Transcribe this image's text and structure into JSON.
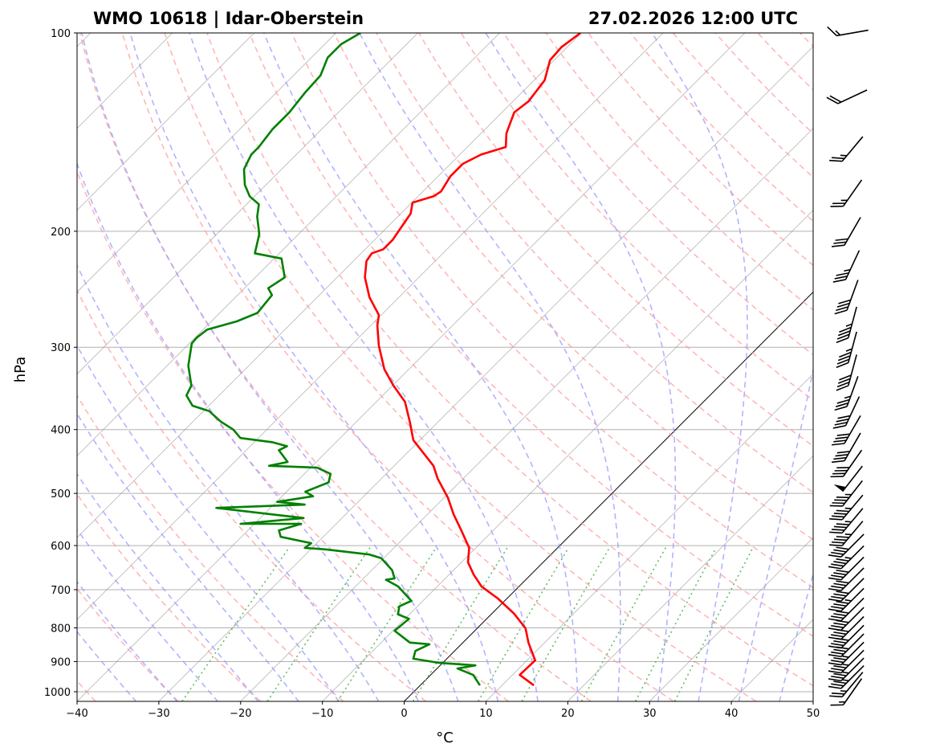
{
  "chart_data": {
    "type": "line",
    "subtype": "skew-t log-p",
    "title_left": "WMO 10618 | Idar-Oberstein",
    "title_right": "27.02.2026 12:00 UTC",
    "xlabel": "°C",
    "ylabel": "hPa",
    "xlim": [
      -40,
      50
    ],
    "ylim": [
      1034,
      100
    ],
    "x_ticks": [
      "−40",
      "−30",
      "−20",
      "−10",
      "0",
      "10",
      "20",
      "30",
      "40",
      "50"
    ],
    "x_tick_values": [
      -40,
      -30,
      -20,
      -10,
      0,
      10,
      20,
      30,
      40,
      50
    ],
    "y_ticks": [
      "100",
      "200",
      "300",
      "400",
      "500",
      "600",
      "700",
      "800",
      "900",
      "1000"
    ],
    "y_tick_values": [
      100,
      200,
      300,
      400,
      500,
      600,
      700,
      800,
      900,
      1000
    ],
    "grid": true,
    "colors": {
      "temperature": "#ff0000",
      "dewpoint": "#008000",
      "dry_adiabat": "#ff9999",
      "moist_adiabat": "#9999ff",
      "mixing_ratio": "#66bb66",
      "isotherm": "#888888",
      "zero_isotherm": "#000000"
    },
    "series": [
      {
        "name": "temperature",
        "points": [
          [
            978,
            13.9
          ],
          [
            943,
            10.9
          ],
          [
            896,
            11.0
          ],
          [
            842,
            8.0
          ],
          [
            801,
            5.9
          ],
          [
            761,
            2.7
          ],
          [
            722,
            -1.1
          ],
          [
            692,
            -4.6
          ],
          [
            664,
            -7.0
          ],
          [
            636,
            -9.2
          ],
          [
            605,
            -10.8
          ],
          [
            569,
            -13.9
          ],
          [
            538,
            -16.8
          ],
          [
            508,
            -19.5
          ],
          [
            475,
            -23.1
          ],
          [
            454,
            -25.2
          ],
          [
            415,
            -30.8
          ],
          [
            389,
            -33.5
          ],
          [
            363,
            -36.5
          ],
          [
            343,
            -39.9
          ],
          [
            324,
            -43.0
          ],
          [
            298,
            -46.6
          ],
          [
            278,
            -49.2
          ],
          [
            268,
            -50.3
          ],
          [
            252,
            -53.6
          ],
          [
            235,
            -56.6
          ],
          [
            222,
            -58.4
          ],
          [
            216,
            -58.7
          ],
          [
            213,
            -57.8
          ],
          [
            206,
            -57.8
          ],
          [
            197,
            -58.3
          ],
          [
            188,
            -58.8
          ],
          [
            181,
            -59.9
          ],
          [
            177,
            -58.1
          ],
          [
            174,
            -57.8
          ],
          [
            165,
            -58.5
          ],
          [
            158,
            -58.5
          ],
          [
            153,
            -57.4
          ],
          [
            149,
            -55.3
          ],
          [
            142,
            -56.9
          ],
          [
            132,
            -58.5
          ],
          [
            127,
            -58.1
          ],
          [
            118,
            -58.7
          ],
          [
            110,
            -60.5
          ],
          [
            105,
            -60.7
          ],
          [
            100,
            -60.1
          ]
        ]
      },
      {
        "name": "dewpoint",
        "points": [
          [
            978,
            7.3
          ],
          [
            943,
            5.2
          ],
          [
            922,
            2.5
          ],
          [
            912,
            4.3
          ],
          [
            904,
            -0.4
          ],
          [
            891,
            -4.1
          ],
          [
            867,
            -4.8
          ],
          [
            847,
            -3.9
          ],
          [
            842,
            -6.5
          ],
          [
            808,
            -9.8
          ],
          [
            775,
            -9.5
          ],
          [
            763,
            -11.4
          ],
          [
            742,
            -12.2
          ],
          [
            728,
            -11.4
          ],
          [
            692,
            -14.8
          ],
          [
            676,
            -17.1
          ],
          [
            673,
            -16.2
          ],
          [
            654,
            -17.5
          ],
          [
            627,
            -20.3
          ],
          [
            619,
            -22.2
          ],
          [
            608,
            -28.2
          ],
          [
            605,
            -30.9
          ],
          [
            595,
            -30.7
          ],
          [
            582,
            -35.2
          ],
          [
            569,
            -36.2
          ],
          [
            556,
            -34.3
          ],
          [
            556,
            -41.7
          ],
          [
            545,
            -34.7
          ],
          [
            526,
            -46.6
          ],
          [
            520,
            -36.2
          ],
          [
            515,
            -39.9
          ],
          [
            505,
            -36.2
          ],
          [
            497,
            -37.7
          ],
          [
            481,
            -36.0
          ],
          [
            467,
            -36.8
          ],
          [
            457,
            -39.2
          ],
          [
            454,
            -45.3
          ],
          [
            448,
            -43.5
          ],
          [
            430,
            -46.0
          ],
          [
            424,
            -45.5
          ],
          [
            418,
            -47.8
          ],
          [
            412,
            -52.2
          ],
          [
            400,
            -54.1
          ],
          [
            389,
            -56.6
          ],
          [
            375,
            -59.3
          ],
          [
            368,
            -62.0
          ],
          [
            355,
            -64.0
          ],
          [
            343,
            -64.6
          ],
          [
            320,
            -67.4
          ],
          [
            296,
            -69.7
          ],
          [
            290,
            -69.8
          ],
          [
            282,
            -69.5
          ],
          [
            274,
            -66.9
          ],
          [
            266,
            -65.4
          ],
          [
            250,
            -65.8
          ],
          [
            244,
            -67.1
          ],
          [
            235,
            -66.4
          ],
          [
            220,
            -69.1
          ],
          [
            216,
            -73.0
          ],
          [
            202,
            -74.8
          ],
          [
            190,
            -77.2
          ],
          [
            182,
            -78.5
          ],
          [
            177,
            -80.6
          ],
          [
            170,
            -82.6
          ],
          [
            161,
            -84.6
          ],
          [
            153,
            -85.5
          ],
          [
            149,
            -85.5
          ],
          [
            140,
            -86.0
          ],
          [
            132,
            -86.0
          ],
          [
            123,
            -86.5
          ],
          [
            116,
            -86.7
          ],
          [
            109,
            -88.0
          ],
          [
            104,
            -88.0
          ],
          [
            100,
            -87.0
          ]
        ]
      }
    ],
    "wind_barbs": [
      {
        "p": 1000,
        "speed_kt": 15,
        "dir_deg": 215
      },
      {
        "p": 975,
        "speed_kt": 25,
        "dir_deg": 220
      },
      {
        "p": 950,
        "speed_kt": 35,
        "dir_deg": 225
      },
      {
        "p": 925,
        "speed_kt": 35,
        "dir_deg": 225
      },
      {
        "p": 900,
        "speed_kt": 35,
        "dir_deg": 225
      },
      {
        "p": 875,
        "speed_kt": 35,
        "dir_deg": 225
      },
      {
        "p": 850,
        "speed_kt": 40,
        "dir_deg": 225
      },
      {
        "p": 825,
        "speed_kt": 40,
        "dir_deg": 225
      },
      {
        "p": 800,
        "speed_kt": 40,
        "dir_deg": 225
      },
      {
        "p": 775,
        "speed_kt": 40,
        "dir_deg": 225
      },
      {
        "p": 750,
        "speed_kt": 40,
        "dir_deg": 225
      },
      {
        "p": 725,
        "speed_kt": 45,
        "dir_deg": 225
      },
      {
        "p": 700,
        "speed_kt": 40,
        "dir_deg": 225
      },
      {
        "p": 675,
        "speed_kt": 40,
        "dir_deg": 225
      },
      {
        "p": 650,
        "speed_kt": 40,
        "dir_deg": 225
      },
      {
        "p": 625,
        "speed_kt": 45,
        "dir_deg": 225
      },
      {
        "p": 600,
        "speed_kt": 40,
        "dir_deg": 225
      },
      {
        "p": 575,
        "speed_kt": 45,
        "dir_deg": 220
      },
      {
        "p": 550,
        "speed_kt": 45,
        "dir_deg": 220
      },
      {
        "p": 525,
        "speed_kt": 45,
        "dir_deg": 220
      },
      {
        "p": 500,
        "speed_kt": 45,
        "dir_deg": 218
      },
      {
        "p": 475,
        "speed_kt": 50,
        "dir_deg": 218
      },
      {
        "p": 450,
        "speed_kt": 40,
        "dir_deg": 215
      },
      {
        "p": 425,
        "speed_kt": 40,
        "dir_deg": 210
      },
      {
        "p": 400,
        "speed_kt": 40,
        "dir_deg": 210
      },
      {
        "p": 375,
        "speed_kt": 40,
        "dir_deg": 205
      },
      {
        "p": 350,
        "speed_kt": 35,
        "dir_deg": 200
      },
      {
        "p": 325,
        "speed_kt": 40,
        "dir_deg": 195
      },
      {
        "p": 300,
        "speed_kt": 45,
        "dir_deg": 195
      },
      {
        "p": 275,
        "speed_kt": 45,
        "dir_deg": 195
      },
      {
        "p": 250,
        "speed_kt": 40,
        "dir_deg": 200
      },
      {
        "p": 225,
        "speed_kt": 35,
        "dir_deg": 205
      },
      {
        "p": 200,
        "speed_kt": 30,
        "dir_deg": 210
      },
      {
        "p": 175,
        "speed_kt": 25,
        "dir_deg": 215
      },
      {
        "p": 150,
        "speed_kt": 25,
        "dir_deg": 220
      },
      {
        "p": 125,
        "speed_kt": 20,
        "dir_deg": 245
      },
      {
        "p": 100,
        "speed_kt": 15,
        "dir_deg": 260
      }
    ]
  }
}
